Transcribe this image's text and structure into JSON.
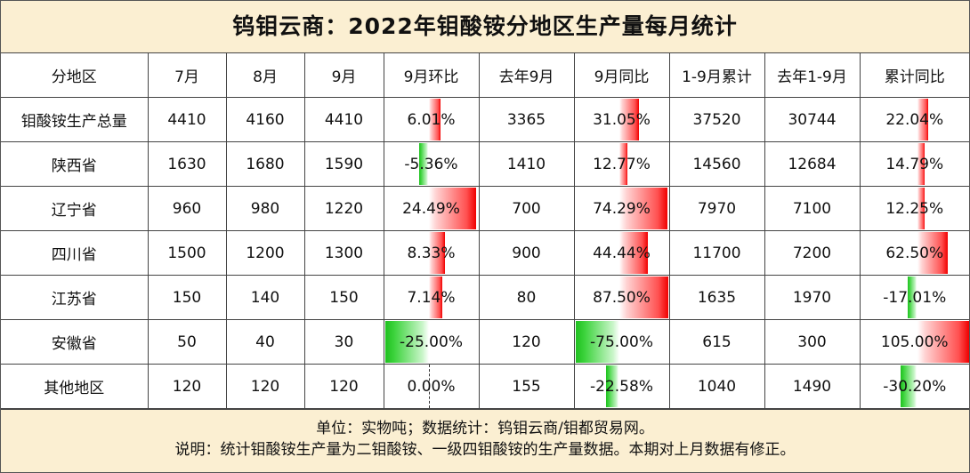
{
  "title": "钨钼云商：2022年钼酸铵分地区生产量每月统计",
  "headers": [
    "分地区",
    "7月",
    "8月",
    "9月",
    "9月环比",
    "去年9月",
    "9月同比",
    "1-9月累计",
    "去年1-9月",
    "累计同比"
  ],
  "rows": [
    {
      "region": "钼酸铵生产总量",
      "jul": "4410",
      "aug": "4160",
      "sep": "4410",
      "mom": "6.01%",
      "mom_value": 6.01,
      "lastyear_sep": "3365",
      "yoy": "31.05%",
      "yoy_value": 31.05,
      "ytd": "37520",
      "lastyear_ytd": "30744",
      "ytd_yoy": "22.04%",
      "ytd_yoy_value": 22.04
    },
    {
      "region": "陕西省",
      "jul": "1630",
      "aug": "1680",
      "sep": "1590",
      "mom": "-5.36%",
      "mom_value": -5.36,
      "lastyear_sep": "1410",
      "yoy": "12.77%",
      "yoy_value": 12.77,
      "ytd": "14560",
      "lastyear_ytd": "12684",
      "ytd_yoy": "14.79%",
      "ytd_yoy_value": 14.79
    },
    {
      "region": "辽宁省",
      "jul": "960",
      "aug": "980",
      "sep": "1220",
      "mom": "24.49%",
      "mom_value": 24.49,
      "lastyear_sep": "700",
      "yoy": "74.29%",
      "yoy_value": 74.29,
      "ytd": "7970",
      "lastyear_ytd": "7100",
      "ytd_yoy": "12.25%",
      "ytd_yoy_value": 12.25
    },
    {
      "region": "四川省",
      "jul": "1500",
      "aug": "1200",
      "sep": "1300",
      "mom": "8.33%",
      "mom_value": 8.33,
      "lastyear_sep": "900",
      "yoy": "44.44%",
      "yoy_value": 44.44,
      "ytd": "11700",
      "lastyear_ytd": "7200",
      "ytd_yoy": "62.50%",
      "ytd_yoy_value": 62.5
    },
    {
      "region": "江苏省",
      "jul": "150",
      "aug": "140",
      "sep": "150",
      "mom": "7.14%",
      "mom_value": 7.14,
      "lastyear_sep": "80",
      "yoy": "87.50%",
      "yoy_value": 87.5,
      "ytd": "1635",
      "lastyear_ytd": "1970",
      "ytd_yoy": "-17.01%",
      "ytd_yoy_value": -17.01
    },
    {
      "region": "安徽省",
      "jul": "50",
      "aug": "40",
      "sep": "30",
      "mom": "-25.00%",
      "mom_value": -25.0,
      "lastyear_sep": "120",
      "yoy": "-75.00%",
      "yoy_value": -75.0,
      "ytd": "615",
      "lastyear_ytd": "300",
      "ytd_yoy": "105.00%",
      "ytd_yoy_value": 105.0
    },
    {
      "region": "其他地区",
      "jul": "120",
      "aug": "120",
      "sep": "120",
      "mom": "0.00%",
      "mom_value": 0.0,
      "lastyear_sep": "155",
      "yoy": "-22.58%",
      "yoy_value": -22.58,
      "ytd": "1040",
      "lastyear_ytd": "1490",
      "ytd_yoy": "-30.20%",
      "ytd_yoy_value": -30.2
    }
  ],
  "footer": {
    "unit_line": "单位：实物吨；数据统计：钨钼云商/钼都贸易网。",
    "note_line": "说明：统计钼酸铵生产量为二钼酸铵、一级四钼酸铵的生产量数据。本期对上月数据有修正。"
  },
  "colors": {
    "header_background": "#fbefd2",
    "positive_bar": "#ff3030",
    "negative_bar": "#22c422"
  }
}
